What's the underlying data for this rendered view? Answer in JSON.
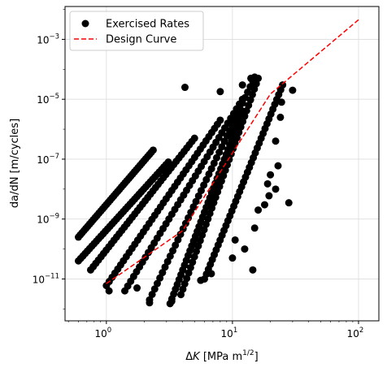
{
  "chart_data": {
    "type": "scatter",
    "xscale": "log",
    "yscale": "log",
    "xlim": [
      0.47,
      145
    ],
    "ylim": [
      4e-13,
      0.0125
    ],
    "xlabel": "ΔK [MPa m1/2]",
    "xlabel_parts": {
      "symbol": "Δ",
      "var": "K",
      "unit_base": "[MPa m",
      "unit_sup": "1/2",
      "unit_end": "]"
    },
    "ylabel": "da/dN [m/cycles]",
    "xticks": [
      {
        "value": 1,
        "base": "10",
        "exp": "0"
      },
      {
        "value": 10,
        "base": "10",
        "exp": "1"
      },
      {
        "value": 100,
        "base": "10",
        "exp": "2"
      }
    ],
    "yticks": [
      {
        "value": 1e-11,
        "base": "10",
        "exp": "−11"
      },
      {
        "value": 1e-09,
        "base": "10",
        "exp": "−9"
      },
      {
        "value": 1e-07,
        "base": "10",
        "exp": "−7"
      },
      {
        "value": 1e-05,
        "base": "10",
        "exp": "−5"
      },
      {
        "value": 0.001,
        "base": "10",
        "exp": "−3"
      }
    ],
    "grid": true,
    "legend_position": "upper-left",
    "series": [
      {
        "name": "Exercised Rates",
        "style": "markers",
        "color": "#000000",
        "bands": [
          {
            "x": [
              0.6,
              2.35
            ],
            "y": [
              2.5e-10,
              2e-07
            ]
          },
          {
            "x": [
              0.6,
              3.1
            ],
            "y": [
              4e-11,
              8e-08
            ]
          },
          {
            "x": [
              0.75,
              5.0
            ],
            "y": [
              2e-11,
              5e-07
            ]
          },
          {
            "x": [
              1.0,
              8.0
            ],
            "y": [
              6e-12,
              2e-06
            ]
          },
          {
            "x": [
              1.4,
              12.0
            ],
            "y": [
              4e-12,
              1e-05
            ]
          },
          {
            "x": [
              2.2,
              14.5
            ],
            "y": [
              2e-12,
              4e-05
            ]
          },
          {
            "x": [
              3.2,
              12.0
            ],
            "y": [
              1.5e-12,
              4e-06
            ]
          },
          {
            "x": [
              3.9,
              16.0
            ],
            "y": [
              3e-12,
              5e-05
            ]
          },
          {
            "x": [
              6.0,
              25.0
            ],
            "y": [
              1e-11,
              3e-05
            ]
          }
        ],
        "points": [
          {
            "x": 1.05,
            "y": 4e-12
          },
          {
            "x": 1.75,
            "y": 5e-12
          },
          {
            "x": 2.2,
            "y": 1.6e-12
          },
          {
            "x": 3.3,
            "y": 1.8e-12
          },
          {
            "x": 5.6,
            "y": 9e-12
          },
          {
            "x": 6.8,
            "y": 1.5e-11
          },
          {
            "x": 10.0,
            "y": 5e-11
          },
          {
            "x": 10.5,
            "y": 2e-10
          },
          {
            "x": 12.5,
            "y": 1e-10
          },
          {
            "x": 14.5,
            "y": 2e-11
          },
          {
            "x": 15.0,
            "y": 5e-10
          },
          {
            "x": 16.0,
            "y": 2e-09
          },
          {
            "x": 18.0,
            "y": 3e-09
          },
          {
            "x": 19.0,
            "y": 1.5e-08
          },
          {
            "x": 19.5,
            "y": 6e-09
          },
          {
            "x": 20.0,
            "y": 3e-08
          },
          {
            "x": 22.0,
            "y": 1e-08
          },
          {
            "x": 22.0,
            "y": 4e-07
          },
          {
            "x": 23.0,
            "y": 6e-08
          },
          {
            "x": 24.0,
            "y": 2.5e-06
          },
          {
            "x": 24.5,
            "y": 8e-06
          },
          {
            "x": 28.0,
            "y": 3.5e-09
          },
          {
            "x": 30.0,
            "y": 2e-05
          },
          {
            "x": 14.0,
            "y": 5e-05
          },
          {
            "x": 15.0,
            "y": 5.5e-05
          },
          {
            "x": 12.0,
            "y": 3e-05
          },
          {
            "x": 8.0,
            "y": 1.8e-05
          },
          {
            "x": 4.2,
            "y": 2.5e-05
          }
        ]
      },
      {
        "name": "Design Curve",
        "style": "dashed",
        "color": "#ff0000",
        "x": [
          1.0,
          4.0,
          20.0,
          100.0
        ],
        "y": [
          7e-12,
          4e-10,
          1.5e-05,
          0.0045
        ]
      }
    ]
  }
}
